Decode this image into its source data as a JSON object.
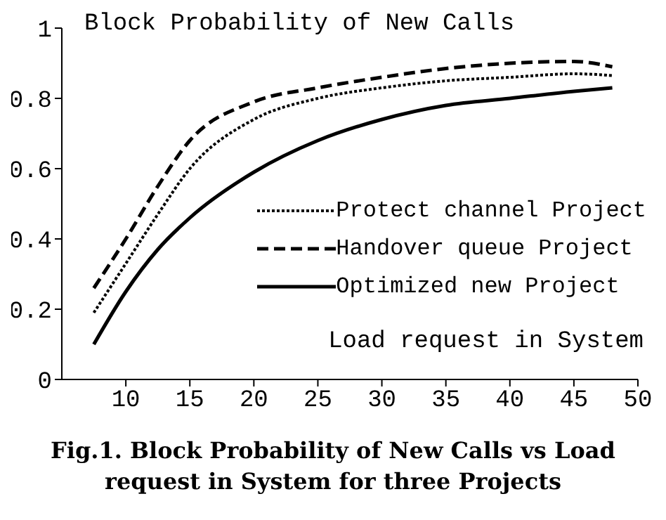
{
  "chart_data": {
    "type": "line",
    "title": "Fig.1. Block Probability of New Calls vs Load request in System for three Projects",
    "ylabel": "Block Probability of New Calls",
    "xlabel": "Load request in System",
    "x": [
      7.5,
      10,
      12.5,
      15,
      20,
      25,
      30,
      35,
      40,
      45,
      48
    ],
    "series": [
      {
        "name": "Protect channel Project",
        "color": "#000000",
        "line_style": "dotted",
        "values": [
          0.19,
          0.33,
          0.47,
          0.6,
          0.74,
          0.8,
          0.83,
          0.85,
          0.86,
          0.87,
          0.865
        ]
      },
      {
        "name": "Handover queue Project",
        "color": "#000000",
        "line_style": "dashed",
        "values": [
          0.26,
          0.4,
          0.55,
          0.68,
          0.79,
          0.83,
          0.86,
          0.885,
          0.9,
          0.905,
          0.89
        ]
      },
      {
        "name": "Optimized new Project",
        "color": "#000000",
        "line_style": "solid",
        "values": [
          0.1,
          0.25,
          0.37,
          0.46,
          0.59,
          0.68,
          0.74,
          0.78,
          0.8,
          0.82,
          0.83
        ]
      }
    ],
    "xlim": [
      5,
      50
    ],
    "xticks": [
      10,
      15,
      20,
      25,
      30,
      35,
      40,
      45,
      50
    ],
    "ylim": [
      0,
      1
    ],
    "yticks": [
      0,
      0.2,
      0.4,
      0.6,
      0.8,
      1
    ],
    "legend": "right",
    "marker": "none",
    "grid": false
  }
}
